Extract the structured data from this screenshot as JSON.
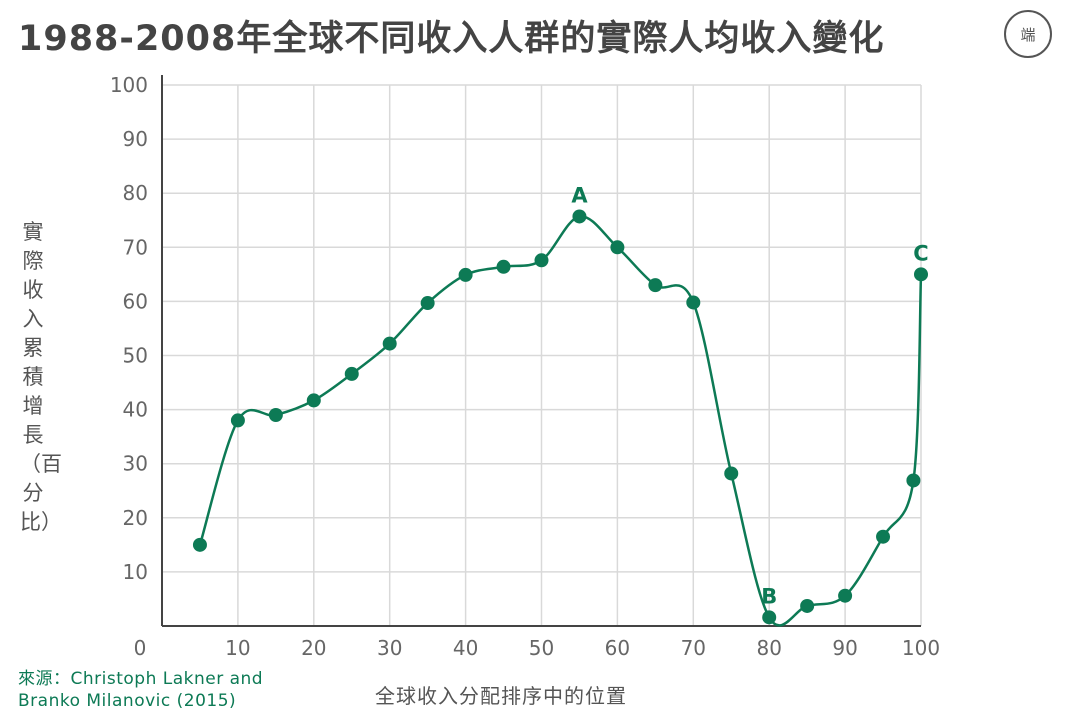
{
  "title": "1988-2008年全球不同收入人群的實際人均收入變化",
  "logo_text": "端",
  "source": "來源：Christoph Lakner and Branko Milanovic (2015)",
  "colors": {
    "line": "#0d7a55",
    "grid": "#d9d9d9",
    "axis": "#444444",
    "title": "#444444"
  },
  "chart_data": {
    "type": "line",
    "xlabel": "全球收入分配排序中的位置",
    "ylabel": "實際收入累積增長（百分比）",
    "xlim": [
      0,
      100
    ],
    "ylim": [
      0,
      100
    ],
    "x_ticks": [
      "0",
      "10",
      "20",
      "30",
      "40",
      "50",
      "60",
      "70",
      "80",
      "90",
      "100"
    ],
    "y_ticks": [
      "10",
      "20",
      "30",
      "40",
      "50",
      "60",
      "70",
      "80",
      "90",
      "100"
    ],
    "grid": true,
    "series": [
      {
        "x": [
          5,
          10,
          15,
          20,
          25,
          30,
          35,
          40,
          45,
          50,
          55,
          60,
          65,
          70,
          75,
          80,
          85,
          90,
          95,
          99,
          100
        ],
        "y": [
          15,
          38,
          39,
          41.7,
          46.6,
          52.2,
          59.7,
          64.9,
          66.4,
          67.6,
          75.7,
          70,
          63,
          59.8,
          28.2,
          1.6,
          3.7,
          5.6,
          16.5,
          26.9,
          65
        ]
      }
    ],
    "annotations": [
      {
        "label": "A",
        "x": 55,
        "y": 75.7
      },
      {
        "label": "B",
        "x": 80,
        "y": 1.6
      },
      {
        "label": "C",
        "x": 100,
        "y": 65
      }
    ]
  }
}
